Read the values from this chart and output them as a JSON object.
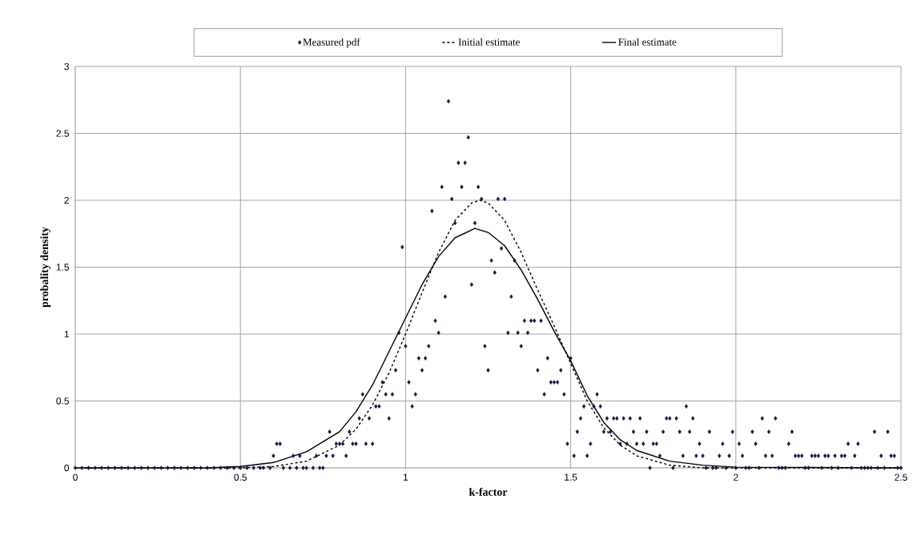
{
  "chart_data": {
    "type": "scatter",
    "xlabel": "k-factor",
    "ylabel": "probality density",
    "xlim": [
      0,
      2.5
    ],
    "ylim": [
      0,
      3
    ],
    "xticks": [
      0,
      0.5,
      1,
      1.5,
      2,
      2.5
    ],
    "yticks": [
      0,
      0.5,
      1,
      1.5,
      2,
      2.5,
      3
    ],
    "grid": true,
    "legend": "top",
    "series": [
      {
        "name": "Measured pdf",
        "marker": "diamond",
        "color": "#1f2a3a",
        "x": [
          0,
          0.02,
          0.04,
          0.06,
          0.08,
          0.1,
          0.12,
          0.14,
          0.16,
          0.18,
          0.2,
          0.22,
          0.24,
          0.26,
          0.28,
          0.3,
          0.32,
          0.34,
          0.36,
          0.38,
          0.4,
          0.42,
          0.44,
          0.46,
          0.48,
          0.5,
          0.52,
          0.54,
          0.56,
          0.57,
          0.59,
          0.63,
          0.65,
          0.67,
          0.69,
          0.7,
          0.72,
          0.74,
          0.75,
          1.74,
          1.81,
          1.91,
          1.93,
          1.94,
          1.97,
          2.0,
          2.03,
          2.04,
          2.07,
          2.13,
          2.14,
          2.15,
          2.21,
          2.22,
          2.26,
          2.29,
          2.31,
          2.35,
          2.38,
          2.39,
          2.4,
          2.41,
          2.43,
          2.45,
          2.49,
          2.5,
          0.6,
          0.61,
          0.62,
          0.66,
          0.68,
          0.73,
          0.76,
          0.77,
          0.78,
          0.79,
          0.8,
          0.81,
          0.82,
          0.83,
          0.84,
          0.85,
          0.86,
          0.87,
          0.88,
          0.89,
          0.9,
          0.91,
          0.92,
          0.93,
          0.94,
          0.95,
          0.96,
          0.97,
          0.98,
          0.99,
          1.0,
          1.01,
          1.02,
          1.03,
          1.04,
          1.05,
          1.06,
          1.07,
          1.08,
          1.09,
          1.1,
          1.11,
          1.12,
          1.13,
          1.14,
          1.15,
          1.16,
          1.17,
          1.18,
          1.19,
          1.2,
          1.21,
          1.22,
          1.23,
          1.24,
          1.25,
          1.26,
          1.27,
          1.28,
          1.29,
          1.3,
          1.31,
          1.32,
          1.33,
          1.34,
          1.35,
          1.36,
          1.37,
          1.38,
          1.39,
          1.4,
          1.41,
          1.42,
          1.43,
          1.44,
          1.45,
          1.46,
          1.47,
          1.48,
          1.49,
          1.5,
          1.51,
          1.52,
          1.53,
          1.54,
          1.55,
          1.56,
          1.57,
          1.58,
          1.59,
          1.6,
          1.61,
          1.62,
          1.63,
          1.64,
          1.65,
          1.66,
          1.67,
          1.68,
          1.69,
          1.7,
          1.71,
          1.72,
          1.73,
          1.75,
          1.76,
          1.77,
          1.78,
          1.79,
          1.8,
          1.82,
          1.83,
          1.84,
          1.85,
          1.86,
          1.87,
          1.88,
          1.89,
          1.9,
          1.92,
          1.95,
          1.96,
          1.98,
          1.99,
          2.01,
          2.02,
          2.05,
          2.06,
          2.08,
          2.09,
          2.1,
          2.11,
          2.12,
          2.16,
          2.17,
          2.18,
          2.19,
          2.2,
          2.23,
          2.24,
          2.25,
          2.27,
          2.28,
          2.3,
          2.32,
          2.33,
          2.34,
          2.36,
          2.37,
          2.42,
          2.44,
          2.46,
          2.47,
          2.48
        ],
        "values": [
          0,
          0,
          0,
          0,
          0,
          0,
          0,
          0,
          0,
          0,
          0,
          0,
          0,
          0,
          0,
          0,
          0,
          0,
          0,
          0,
          0,
          0,
          0,
          0,
          0,
          0,
          0,
          0,
          0,
          0,
          0,
          0,
          0,
          0,
          0,
          0,
          0,
          0,
          0,
          0,
          0,
          0,
          0,
          0,
          0,
          0,
          0,
          0,
          0,
          0,
          0,
          0,
          0,
          0,
          0,
          0,
          0,
          0,
          0,
          0,
          0,
          0,
          0,
          0,
          0,
          0,
          0.09,
          0.18,
          0.18,
          0.09,
          0.09,
          0.09,
          0.09,
          0.27,
          0.09,
          0.18,
          0.18,
          0.18,
          0.09,
          0.27,
          0.18,
          0.18,
          0.37,
          0.55,
          0.18,
          0.37,
          0.18,
          0.46,
          0.46,
          0.64,
          0.55,
          0.37,
          0.55,
          0.73,
          1.01,
          1.65,
          0.91,
          0.64,
          0.46,
          0.55,
          0.82,
          0.73,
          0.82,
          0.91,
          1.92,
          1.1,
          1.01,
          2.1,
          1.28,
          2.74,
          2.01,
          1.83,
          2.28,
          2.1,
          2.28,
          2.47,
          1.37,
          1.83,
          2.1,
          2.01,
          0.91,
          0.73,
          1.55,
          1.46,
          2.01,
          1.64,
          2.01,
          1.01,
          1.28,
          1.55,
          1.01,
          0.91,
          1.1,
          1.01,
          1.1,
          1.1,
          0.73,
          1.1,
          0.55,
          0.82,
          0.64,
          0.64,
          0.64,
          0.73,
          0.55,
          0.18,
          0.82,
          0.09,
          0.27,
          0.37,
          0.46,
          0.09,
          0.18,
          0.46,
          0.55,
          0.46,
          0.27,
          0.37,
          0.27,
          0.37,
          0.37,
          0.18,
          0.37,
          0.18,
          0.37,
          0.27,
          0.18,
          0.37,
          0.18,
          0.27,
          0.18,
          0.18,
          0.09,
          0.27,
          0.37,
          0.37,
          0.37,
          0.27,
          0.09,
          0.46,
          0.27,
          0.37,
          0.09,
          0.18,
          0.09,
          0.27,
          0.09,
          0.18,
          0.09,
          0.27,
          0.18,
          0.09,
          0.27,
          0.18,
          0.37,
          0.09,
          0.27,
          0.09,
          0.37,
          0.18,
          0.27,
          0.09,
          0.09,
          0.09,
          0.09,
          0.09,
          0.09,
          0.09,
          0.09,
          0.09,
          0.09,
          0.09,
          0.18,
          0.09,
          0.18,
          0.27,
          0.09,
          0.27,
          0.09,
          0.09
        ]
      },
      {
        "name": "Initial estimate",
        "type": "line",
        "line_style": "dashed",
        "marker": "none",
        "color": "#000000",
        "x": [
          0,
          0.5,
          0.6,
          0.7,
          0.8,
          0.85,
          0.9,
          0.95,
          1.0,
          1.05,
          1.1,
          1.15,
          1.2,
          1.225,
          1.25,
          1.3,
          1.35,
          1.4,
          1.45,
          1.5,
          1.55,
          1.6,
          1.65,
          1.7,
          1.8,
          1.9,
          2.0,
          2.5
        ],
        "values": [
          0,
          0,
          0.01,
          0.05,
          0.17,
          0.29,
          0.47,
          0.71,
          1.0,
          1.31,
          1.61,
          1.85,
          1.98,
          2.0,
          1.98,
          1.85,
          1.61,
          1.33,
          1.06,
          0.78,
          0.5,
          0.3,
          0.17,
          0.09,
          0.02,
          0,
          0,
          0
        ]
      },
      {
        "name": "Final estimate",
        "type": "line",
        "line_style": "solid",
        "marker": "none",
        "color": "#000000",
        "x": [
          0,
          0.4,
          0.5,
          0.6,
          0.7,
          0.8,
          0.85,
          0.9,
          0.95,
          1.0,
          1.05,
          1.1,
          1.15,
          1.21,
          1.25,
          1.3,
          1.35,
          1.4,
          1.45,
          1.5,
          1.55,
          1.6,
          1.65,
          1.7,
          1.8,
          1.9,
          2.0,
          2.5
        ],
        "values": [
          0,
          0,
          0.01,
          0.04,
          0.12,
          0.27,
          0.42,
          0.62,
          0.87,
          1.12,
          1.37,
          1.58,
          1.72,
          1.79,
          1.76,
          1.66,
          1.48,
          1.26,
          1.02,
          0.8,
          0.54,
          0.34,
          0.21,
          0.13,
          0.05,
          0.02,
          0.005,
          0
        ]
      }
    ]
  }
}
